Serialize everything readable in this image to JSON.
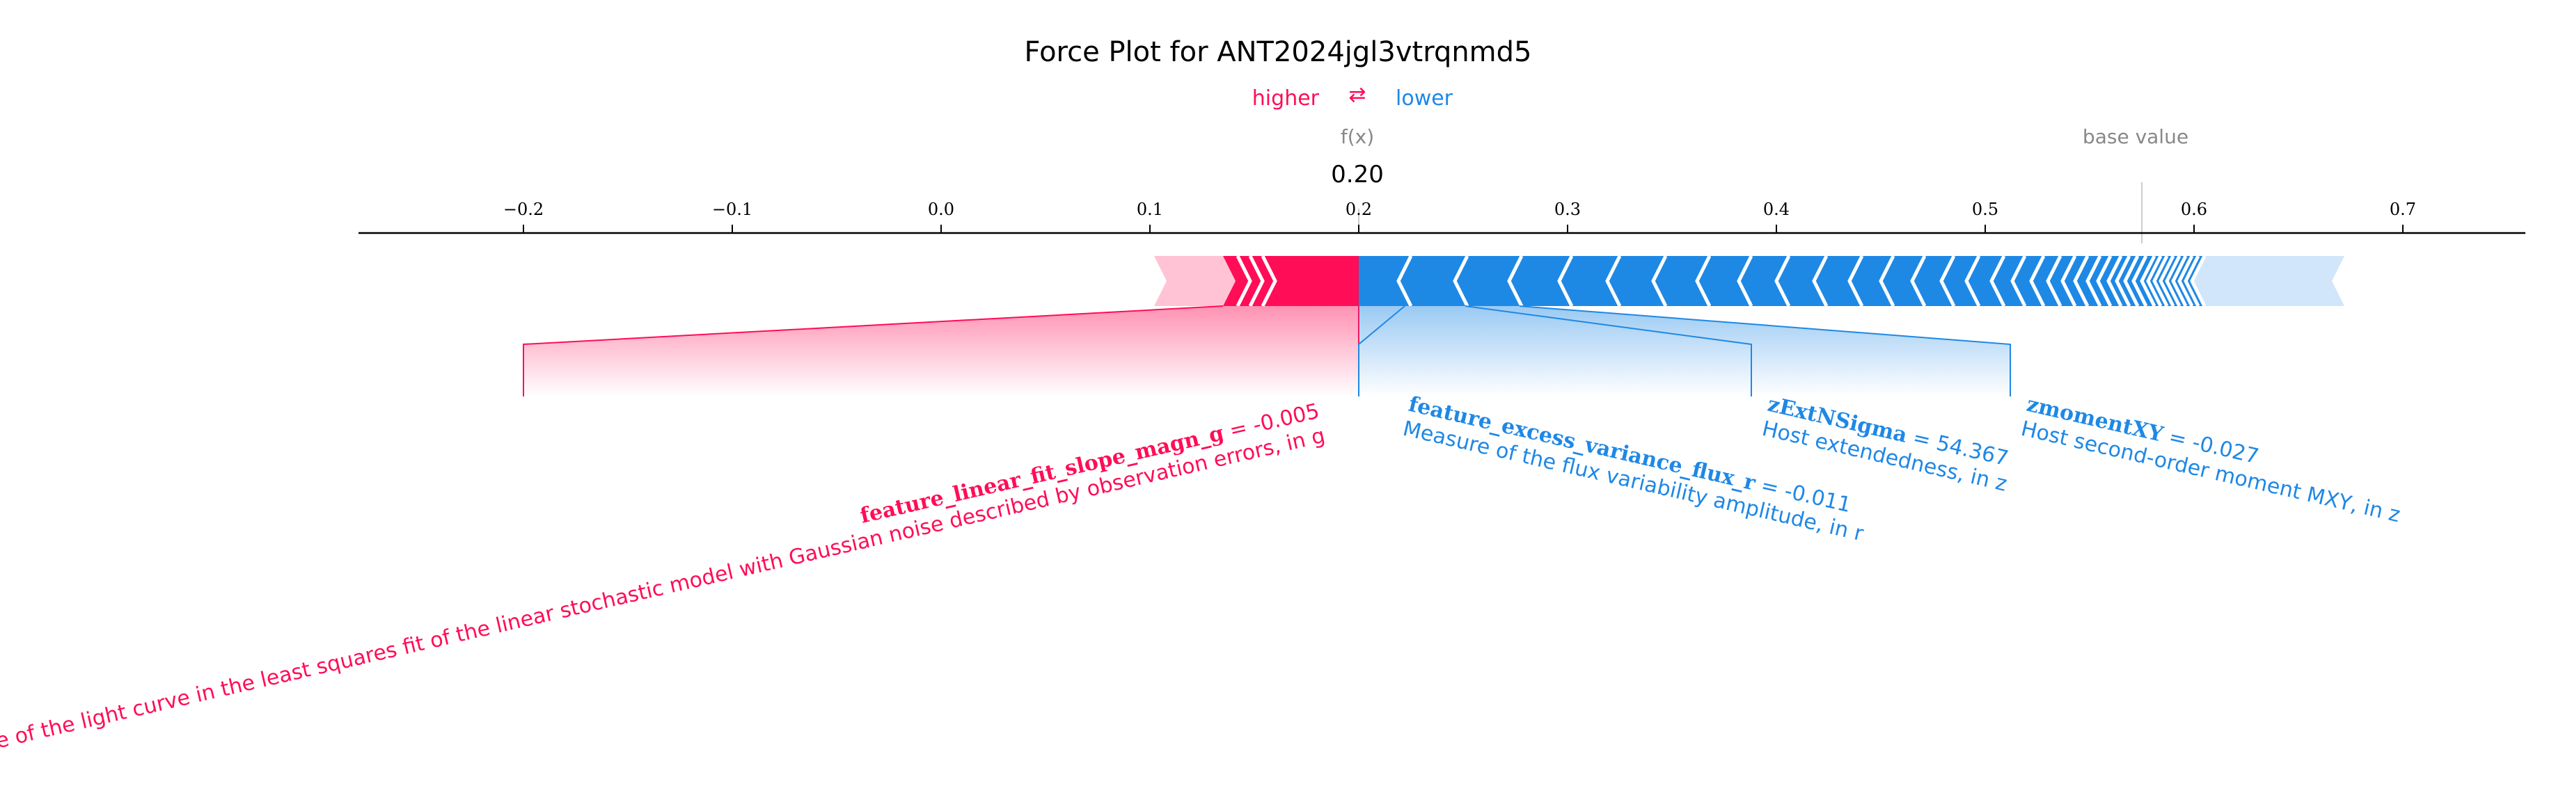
{
  "chart_data": {
    "type": "force",
    "title": "Force Plot for ANT2024jgl3vtrqnmd5",
    "legend": {
      "higher": "higher",
      "arrow": "⇄",
      "lower": "lower"
    },
    "output_label": "f(x)",
    "output_value": 0.2,
    "output_value_text": "0.20",
    "base_label": "base value",
    "base_value": 0.575,
    "xlim": [
      -0.28,
      0.76
    ],
    "ticks": [
      -0.2,
      -0.1,
      0.0,
      0.1,
      0.2,
      0.3,
      0.4,
      0.5,
      0.6,
      0.7
    ],
    "tick_labels": [
      "−0.2",
      "−0.1",
      "0.0",
      "0.1",
      "0.2",
      "0.3",
      "0.4",
      "0.5",
      "0.6",
      "0.7"
    ],
    "colors": {
      "positive": "#ff0d57",
      "negative": "#1e88e5",
      "positive_light": "#ffc3d5",
      "negative_light": "#d1e6fa",
      "grey": "#888888"
    },
    "positive_bar": {
      "start": 0.102,
      "end": 0.2,
      "dark_start": 0.135,
      "chevrons": [
        0.142,
        0.148,
        0.154
      ]
    },
    "negative_bar": {
      "start": 0.2,
      "end": 0.672,
      "dark_end": 0.605,
      "chevrons": [
        0.225,
        0.252,
        0.278,
        0.302,
        0.325,
        0.347,
        0.368,
        0.388,
        0.406,
        0.424,
        0.441,
        0.456,
        0.471,
        0.485,
        0.497,
        0.509,
        0.519,
        0.528,
        0.536,
        0.543,
        0.549,
        0.555,
        0.56,
        0.565,
        0.569,
        0.573,
        0.577,
        0.581,
        0.584,
        0.587,
        0.59,
        0.593,
        0.596,
        0.599,
        0.602,
        0.605
      ]
    },
    "features": [
      {
        "side": "positive",
        "name": "feature_linear_fit_slope_magn_g",
        "value_text": " = -0.005",
        "description": "The slope of the light curve in the least squares fit of the linear stochastic model with Gaussian noise described by observation errors, in g",
        "seg": [
          0.135,
          0.2
        ],
        "anchor": -0.2
      },
      {
        "side": "negative",
        "name": "feature_excess_variance_flux_r",
        "value_text": " = -0.011",
        "description": "Measure of the flux variability amplitude, in r",
        "seg": [
          0.2,
          0.222
        ],
        "anchor": 0.2
      },
      {
        "side": "negative",
        "name": "zExtNSigma",
        "value_text": " = 54.367",
        "description": "Host extendedness, in z",
        "seg": [
          0.222,
          0.251
        ],
        "anchor": 0.388
      },
      {
        "side": "negative",
        "name": "zmomentXY",
        "value_text": " = -0.027",
        "description": "Host second-order moment MXY, in z",
        "seg": [
          0.251,
          0.277
        ],
        "anchor": 0.512
      }
    ]
  }
}
